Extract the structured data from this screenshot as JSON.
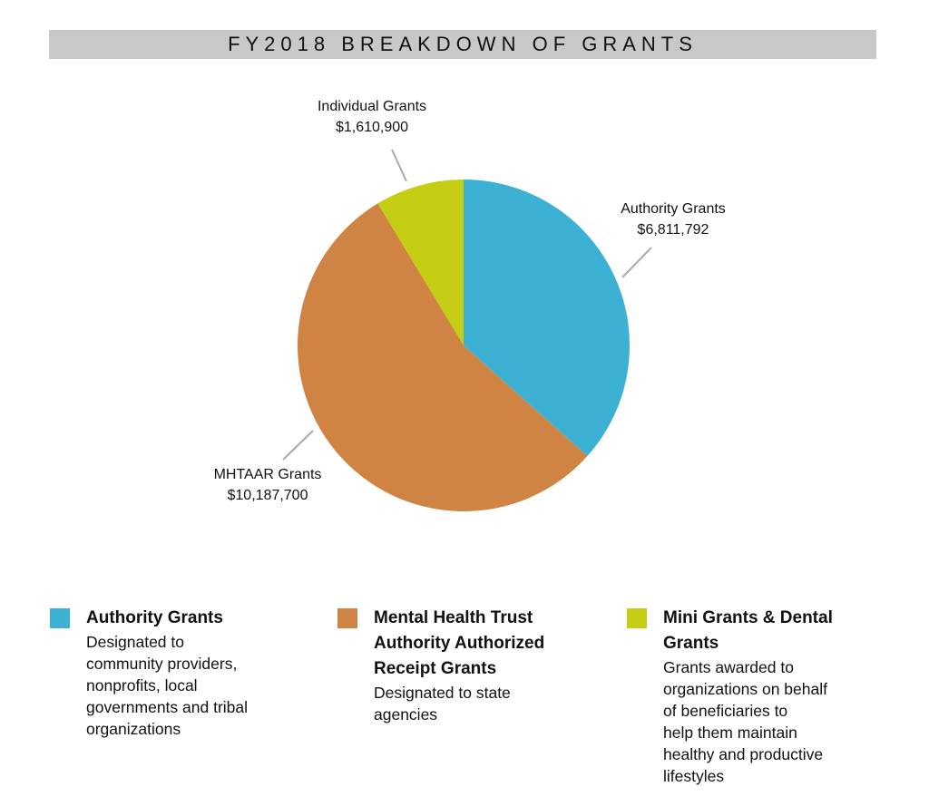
{
  "chart_data": {
    "type": "pie",
    "title": "FY2018 BREAKDOWN OF GRANTS",
    "start": "top",
    "direction": "clockwise",
    "slices": [
      {
        "label": "Authority Grants",
        "value": 6811792,
        "value_label": "$6,811,792",
        "color": "#3cb1d3"
      },
      {
        "label": "MHTAAR Grants",
        "value": 10187700,
        "value_label": "$10,187,700",
        "color": "#cf8443"
      },
      {
        "label": "Individual Grants",
        "value": 1610900,
        "value_label": "$1,610,900",
        "color": "#c5cd14"
      }
    ]
  },
  "legend": [
    {
      "heading": "Authority Grants",
      "description": "Designated to\ncommunity providers,\nnonprofits, local\ngovernments and tribal\norganizations",
      "color": "#3cb1d3"
    },
    {
      "heading": "Mental Health Trust\nAuthority Authorized\nReceipt Grants",
      "description": "Designated to state\nagencies",
      "color": "#cf8443"
    },
    {
      "heading": "Mini Grants & Dental\nGrants",
      "description": "Grants awarded to\norganizations on behalf\nof beneficiaries to\nhelp them maintain\nhealthy and productive\nlifestyles",
      "color": "#c5cd14"
    }
  ]
}
